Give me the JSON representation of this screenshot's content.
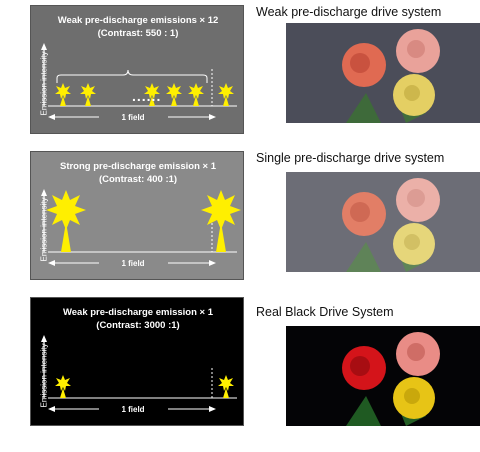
{
  "panels": [
    {
      "title_line1": "Weak pre-discharge emissions × 12",
      "title_line2": "(Contrast: 550 : 1)",
      "ylabel": "Emission intensity",
      "xlabel": "1 field",
      "ellipsis": "......",
      "bg": "#6e6e6e",
      "fg": "#ffffff",
      "peak": "#ffef00"
    },
    {
      "title_line1": "Strong pre-discharge emission × 1",
      "title_line2": "(Contrast: 400 :1)",
      "ylabel": "Emission intensity",
      "xlabel": "1 field",
      "bg": "#8a8a8a",
      "fg": "#ffffff",
      "peak": "#ffef00"
    },
    {
      "title_line1": "Weak pre-discharge emission × 1",
      "title_line2": "(Contrast: 3000 :1)",
      "ylabel": "Emission intensity",
      "xlabel": "1 field",
      "bg": "#000000",
      "fg": "#ffffff",
      "peak": "#ffef00"
    }
  ],
  "captions": [
    "Weak pre-discharge drive system",
    "Single pre-discharge drive system",
    "Real Black Drive System"
  ],
  "photos": [
    {
      "description_icon": "rose-bouquet-image",
      "tone": "grey-blacks"
    },
    {
      "description_icon": "rose-bouquet-image",
      "tone": "washed-grey"
    },
    {
      "description_icon": "rose-bouquet-image",
      "tone": "deep-black"
    }
  ]
}
